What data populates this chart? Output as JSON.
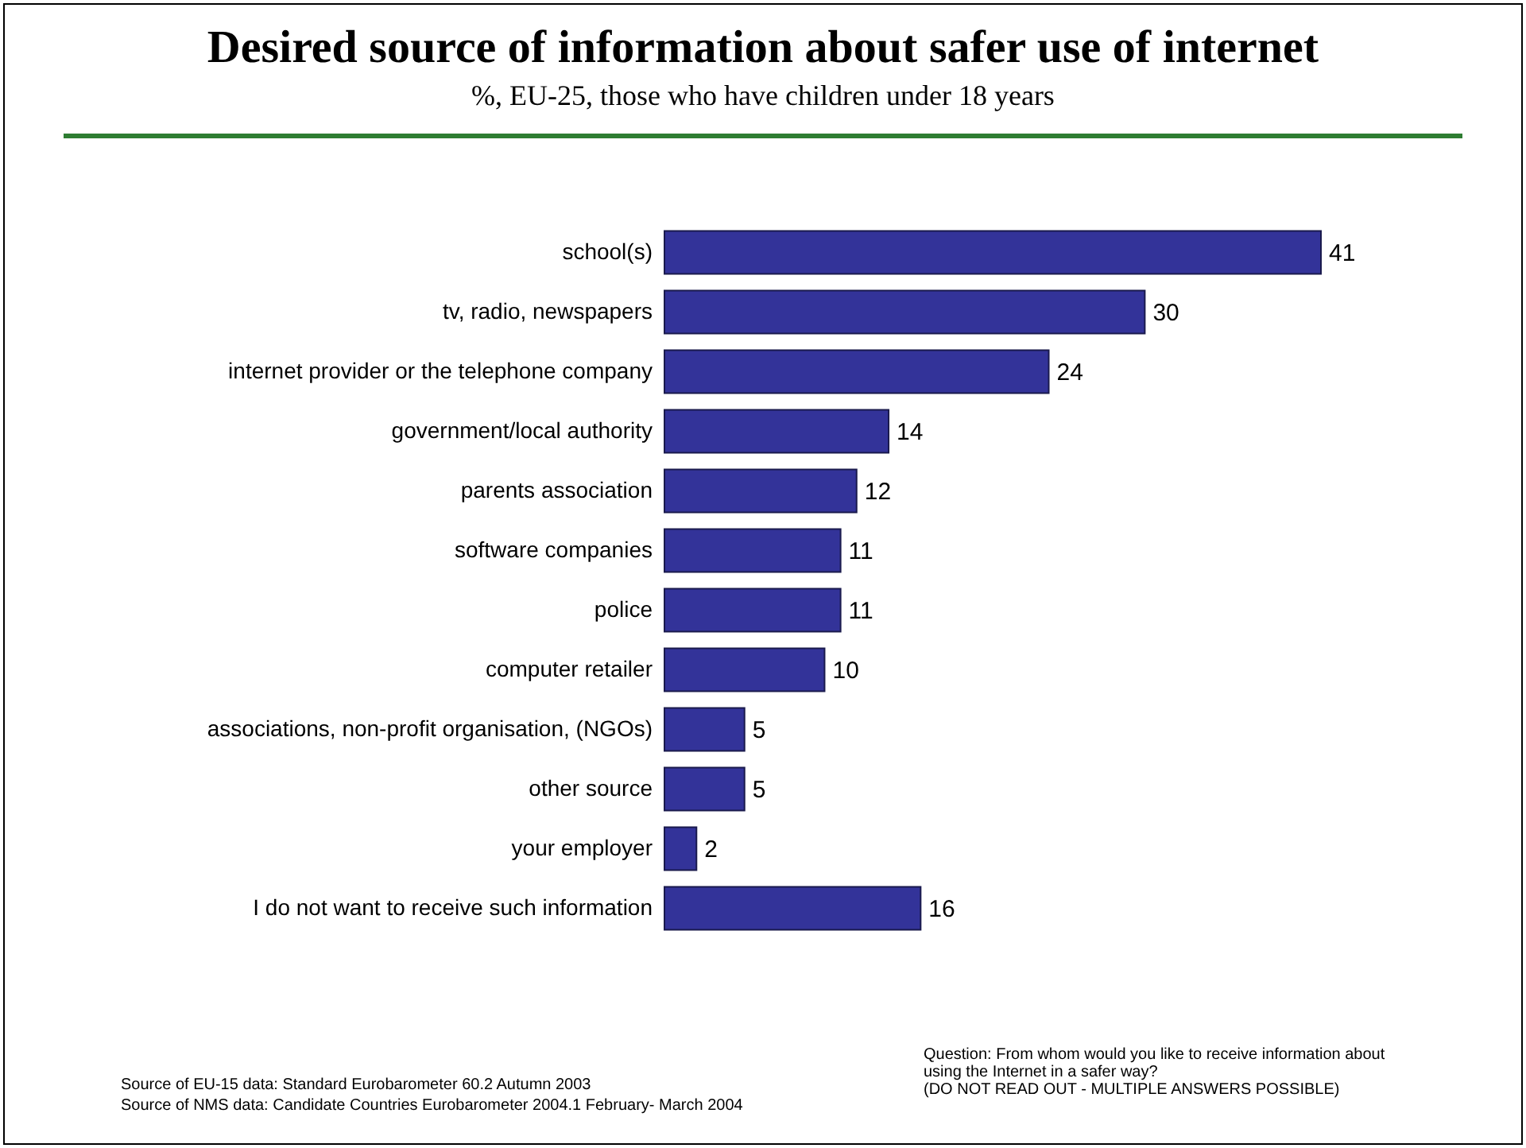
{
  "chart_data": {
    "type": "bar",
    "orientation": "horizontal",
    "data_labels": true,
    "title": "Desired source of information about safer use of internet",
    "subtitle": "%, EU-25, those who have children under 18 years",
    "categories": [
      "school(s)",
      "tv, radio, newspapers",
      "internet provider or the telephone company",
      "government/local authority",
      "parents association",
      "software companies",
      "police",
      "computer retailer",
      "associations, non-profit organisation, (NGOs)",
      "other source",
      "your employer",
      "I do not want to receive such information"
    ],
    "values": [
      41,
      30,
      24,
      14,
      12,
      11,
      11,
      10,
      5,
      5,
      2,
      16
    ],
    "color": "#333399",
    "annotations": [
      "Question:  From whom would you like to receive information about using the Internet in a safer way?",
      "(DO NOT READ OUT - MULTIPLE ANSWERS POSSIBLE)",
      "Source of EU-15 data: Standard Eurobarometer 60.2 Autumn 2003",
      "Source of NMS data: Candidate Countries Eurobarometer 2004.1 February- March  2004"
    ]
  }
}
